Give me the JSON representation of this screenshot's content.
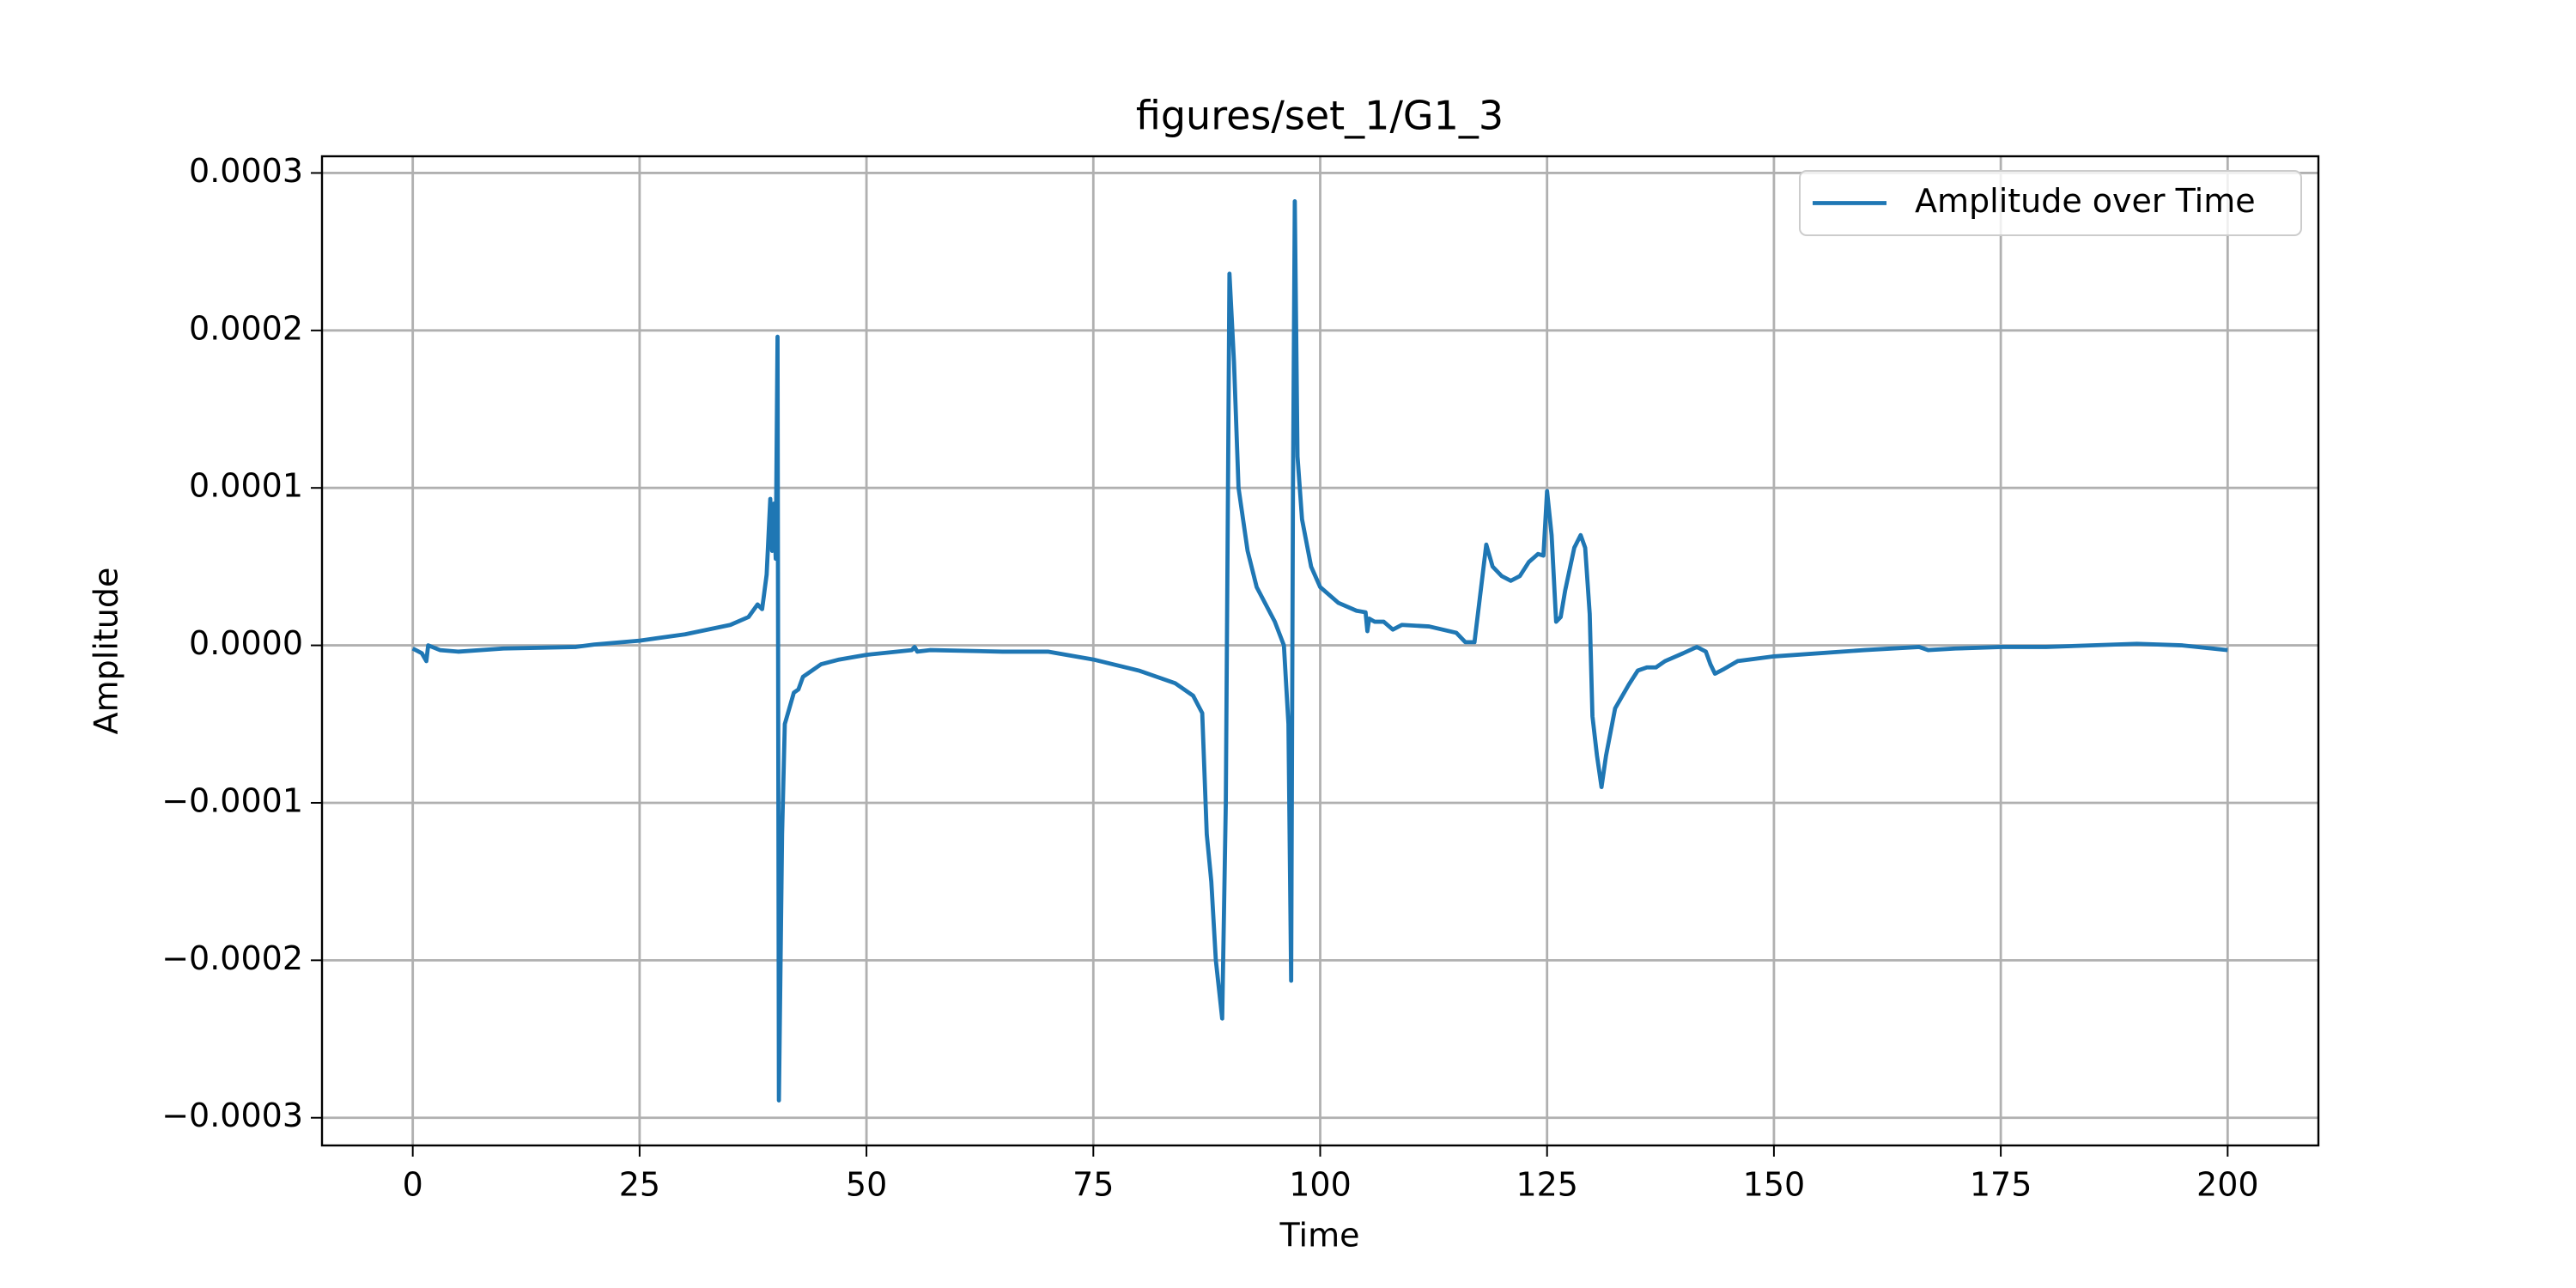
{
  "chart_data": {
    "type": "line",
    "title": "figures/set_1/G1_3",
    "xlabel": "Time",
    "ylabel": "Amplitude",
    "x": [
      0,
      1,
      1.5,
      1.7,
      3,
      5,
      10,
      18,
      20,
      25,
      30,
      35,
      37,
      38,
      38.5,
      39,
      39.4,
      39.6,
      39.8,
      40,
      40.2,
      40.35,
      40.7,
      41,
      42,
      42.5,
      43,
      45,
      47,
      50,
      55,
      55.3,
      55.6,
      57,
      65,
      70,
      75,
      80,
      84,
      86,
      87,
      87.5,
      88,
      88.5,
      89.2,
      89.6,
      90,
      90.5,
      91,
      92,
      93,
      95,
      96,
      96.5,
      96.8,
      97,
      97.2,
      97.5,
      98,
      99,
      100,
      102,
      104,
      105,
      105.2,
      105.4,
      106,
      107,
      108,
      109,
      112,
      115,
      116,
      117,
      117.8,
      118.3,
      119,
      120,
      121,
      122,
      123,
      124,
      124.6,
      125,
      125.5,
      126,
      126.5,
      127,
      128,
      128.7,
      129.2,
      129.7,
      130,
      130.5,
      131,
      131.5,
      132.5,
      134,
      135,
      136,
      137,
      138,
      140,
      141.5,
      142.5,
      143,
      143.5,
      144.5,
      146,
      150,
      160,
      166,
      167,
      170,
      175,
      180,
      190,
      195,
      200
    ],
    "series": [
      {
        "name": "Amplitude over Time",
        "color": "#1f77b4",
        "values": [
          -2e-06,
          -5e-06,
          -1e-05,
          0,
          -3e-06,
          -4e-06,
          -2e-06,
          -1e-06,
          5e-07,
          3e-06,
          7e-06,
          1.3e-05,
          1.8e-05,
          2.6e-05,
          2.3e-05,
          4.5e-05,
          9.3e-05,
          6e-05,
          9e-05,
          5.5e-05,
          0.000196,
          -0.000289,
          -0.00012,
          -5e-05,
          -3e-05,
          -2.8e-05,
          -2e-05,
          -1.2e-05,
          -9e-06,
          -6e-06,
          -3e-06,
          -1e-06,
          -4e-06,
          -3e-06,
          -4e-06,
          -4e-06,
          -9e-06,
          -1.6e-05,
          -2.4e-05,
          -3.2e-05,
          -4.3e-05,
          -0.00012,
          -0.00015,
          -0.0002,
          -0.000237,
          -0.0001,
          0.000236,
          0.00018,
          0.0001,
          6e-05,
          3.7e-05,
          1.5e-05,
          0,
          -5e-05,
          -0.000213,
          0.0001,
          0.000282,
          0.00012,
          8e-05,
          5e-05,
          3.7e-05,
          2.7e-05,
          2.2e-05,
          2.1e-05,
          9e-06,
          1.7e-05,
          1.5e-05,
          1.5e-05,
          1e-05,
          1.3e-05,
          1.2e-05,
          8e-06,
          2e-06,
          2e-06,
          4e-05,
          6.4e-05,
          5e-05,
          4.4e-05,
          4.1e-05,
          4.4e-05,
          5.3e-05,
          5.8e-05,
          5.7e-05,
          9.8e-05,
          7e-05,
          1.5e-05,
          1.8e-05,
          3.5e-05,
          6.2e-05,
          7e-05,
          6.2e-05,
          2e-05,
          -4.5e-05,
          -7e-05,
          -9e-05,
          -7e-05,
          -4e-05,
          -2.5e-05,
          -1.6e-05,
          -1.4e-05,
          -1.4e-05,
          -1e-05,
          -5e-06,
          -1e-06,
          -4e-06,
          -1.2e-05,
          -1.8e-05,
          -1.5e-05,
          -1e-05,
          -7e-06,
          -3e-06,
          -1e-06,
          -3e-06,
          -2e-06,
          -1e-06,
          -1e-06,
          1e-06,
          0,
          -3e-06
        ]
      }
    ],
    "xlim": [
      -10,
      210
    ],
    "xticks": [
      0,
      25,
      50,
      75,
      100,
      125,
      150,
      175,
      200
    ],
    "ylim": [
      -0.0003176,
      0.0003106
    ],
    "yticks": [
      {
        "value": -0.0003,
        "label": "−0.0003"
      },
      {
        "value": -0.0002,
        "label": "−0.0002"
      },
      {
        "value": -0.0001,
        "label": "−0.0001"
      },
      {
        "value": 0,
        "label": "0.0000"
      },
      0.0001,
      0.0002,
      0.0003
    ],
    "grid": true,
    "legend": "upper-right"
  }
}
